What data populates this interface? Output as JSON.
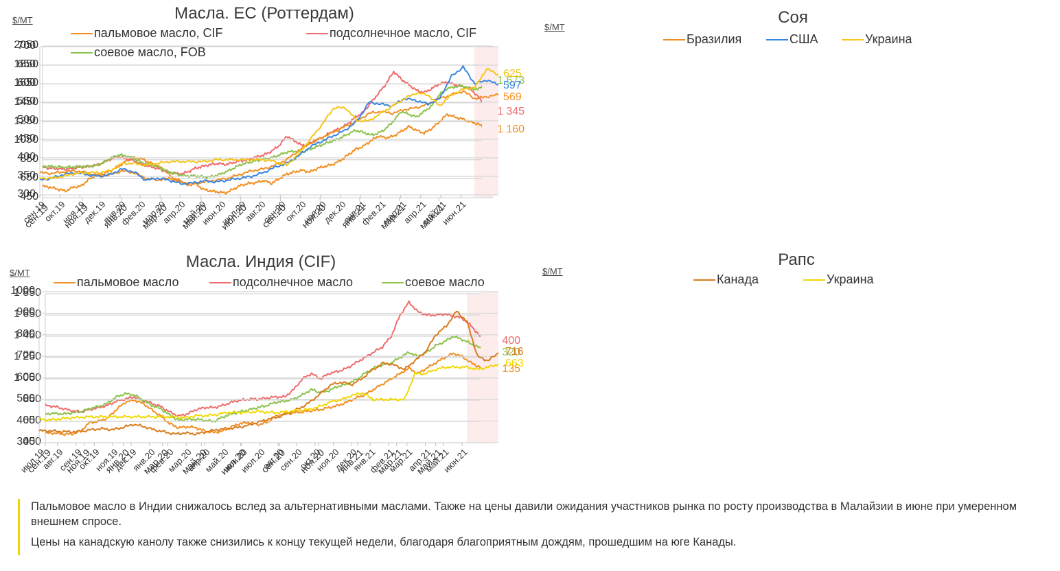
{
  "chart_data": [
    {
      "id": "eu",
      "type": "line",
      "title": "Масла. ЕС (Роттердам)",
      "unit": "$/MT",
      "ylim": [
        450,
        2050
      ],
      "yticks": [
        450,
        650,
        850,
        1050,
        1250,
        1450,
        1650,
        1850,
        2050
      ],
      "ytick_labels": [
        "450",
        "650",
        "850",
        "1050",
        "1250",
        "1450",
        "1650",
        "1850",
        "2050"
      ],
      "x_range": [
        "2019-09",
        "2021-06 (mid)"
      ],
      "xtick_labels": [
        "сен.19",
        "ноя.19",
        "янв.20",
        "мар.20",
        "май.20",
        "июл.20",
        "сен.20",
        "ноя.20",
        "янв.21",
        "мар.21",
        "май.21"
      ],
      "highlight": "last ~3 weeks shaded pink",
      "grid": true,
      "legend": "top",
      "series": [
        {
          "name": "пальмовое масло, CIF",
          "color": "#f28e1f",
          "end_label": "1 160",
          "values": [
            570,
            560,
            540,
            520,
            560,
            570,
            640,
            690,
            700,
            740,
            780,
            840,
            870,
            860,
            820,
            790,
            740,
            660,
            630,
            580,
            600,
            540,
            520,
            510,
            500,
            540,
            580,
            600,
            610,
            630,
            600,
            650,
            700,
            720,
            740,
            720,
            760,
            780,
            800,
            840,
            900,
            960,
            990,
            1050,
            1100,
            1080,
            1100,
            1150,
            1200,
            1160,
            1130,
            1180,
            1250,
            1330,
            1300,
            1280,
            1250,
            1230,
            1180,
            1160
          ]
        },
        {
          "name": "подсолнечное масло, CIF",
          "color": "#ef6b6b",
          "end_label": "1 345",
          "values": [
            770,
            760,
            755,
            750,
            760,
            770,
            780,
            790,
            820,
            860,
            880,
            860,
            840,
            800,
            780,
            760,
            730,
            710,
            700,
            720,
            760,
            780,
            800,
            810,
            800,
            820,
            840,
            850,
            880,
            900,
            940,
            1000,
            1100,
            1050,
            1000,
            1020,
            1060,
            1100,
            1150,
            1180,
            1230,
            1300,
            1350,
            1450,
            1550,
            1650,
            1780,
            1700,
            1640,
            1580,
            1560,
            1600,
            1650,
            1670,
            1640,
            1620,
            1600,
            1520,
            1420,
            1345
          ]
        },
        {
          "name": "соевое масло, FOB",
          "color": "#8bc34a",
          "end_label": "1 673",
          "values": [
            780,
            780,
            775,
            770,
            775,
            780,
            780,
            790,
            820,
            870,
            900,
            890,
            860,
            820,
            800,
            780,
            740,
            710,
            690,
            680,
            680,
            670,
            670,
            690,
            720,
            760,
            800,
            820,
            840,
            860,
            870,
            900,
            930,
            940,
            930,
            960,
            990,
            1020,
            1050,
            1080,
            1120,
            1160,
            1140,
            1110,
            1130,
            1180,
            1260,
            1360,
            1330,
            1300,
            1360,
            1420,
            1540,
            1600,
            1620,
            1630,
            1600,
            1590,
            1660,
            1673
          ]
        }
      ]
    },
    {
      "id": "soy",
      "type": "line",
      "title": "Соя",
      "unit": "$/MT",
      "ylim": [
        300,
        700
      ],
      "yticks": [
        300,
        350,
        400,
        450,
        500,
        550,
        600,
        650,
        700
      ],
      "ytick_labels": [
        "300",
        "350",
        "400",
        "450",
        "500",
        "550",
        "600",
        "650",
        "700"
      ],
      "x_range": [
        "2019-09",
        "2021-06 (mid)"
      ],
      "xtick_labels": [
        "сен.19",
        "окт.19",
        "ноя.19",
        "дек.19",
        "янв.20",
        "фев.20",
        "мар.20",
        "апр.20",
        "май.20",
        "июн.20",
        "июл.20",
        "авг.20",
        "сен.20",
        "окт.20",
        "ноя.20",
        "дек.20",
        "янв.21",
        "фев.21",
        "мар.21",
        "апр.21",
        "май.21",
        "июн.21"
      ],
      "highlight": "last ~3 weeks shaded pink",
      "grid": true,
      "legend": "top",
      "series": [
        {
          "name": "Бразилия",
          "color": "#f28e1f",
          "end_label": "569",
          "values": [
            360,
            358,
            362,
            365,
            360,
            350,
            355,
            365,
            360,
            345,
            340,
            345,
            335,
            330,
            335,
            340,
            345,
            355,
            365,
            370,
            380,
            395,
            420,
            440,
            455,
            470,
            485,
            500,
            520,
            525,
            520,
            530,
            535,
            545,
            560,
            570,
            580,
            560,
            565,
            570
          ]
        },
        {
          "name": "США",
          "color": "#3a86e0",
          "end_label": "597",
          "values": [
            340,
            345,
            355,
            360,
            355,
            350,
            355,
            370,
            362,
            340,
            345,
            340,
            330,
            332,
            338,
            335,
            340,
            345,
            350,
            360,
            375,
            385,
            405,
            430,
            445,
            460,
            475,
            500,
            550,
            545,
            540,
            560,
            555,
            545,
            560,
            620,
            645,
            600,
            610,
            597
          ]
        },
        {
          "name": "Украина",
          "color": "#f5c518",
          "end_label": "625",
          "values": [
            345,
            345,
            350,
            358,
            360,
            360,
            365,
            385,
            385,
            380,
            385,
            390,
            390,
            390,
            390,
            395,
            395,
            395,
            395,
            395,
            390,
            380,
            410,
            450,
            490,
            535,
            535,
            500,
            500,
            520,
            540,
            560,
            575,
            570,
            540,
            570,
            585,
            590,
            640,
            625
          ]
        }
      ]
    },
    {
      "id": "india",
      "type": "line",
      "title": "Масла. Индия (CIF)",
      "unit": "$/MT",
      "ylim": [
        450,
        1850
      ],
      "yticks": [
        450,
        650,
        850,
        1050,
        1250,
        1450,
        1650,
        1850
      ],
      "ytick_labels": [
        "450",
        "650",
        "850",
        "1 050",
        "1 250",
        "1 450",
        "1 650",
        "1 850"
      ],
      "x_range": [
        "2019-09",
        "2021-06 (mid)"
      ],
      "xtick_labels": [
        "сен.19",
        "ноя.19",
        "янв.20",
        "мар.20",
        "май.20",
        "июл.20",
        "сен.20",
        "ноя.20",
        "янв.21",
        "мар.21",
        "май.21"
      ],
      "highlight": "last ~3 weeks shaded pink",
      "grid": true,
      "legend": "top",
      "series": [
        {
          "name": "пальмовое масло",
          "color": "#f28e1f",
          "end_label": "1 135",
          "values": [
            540,
            540,
            530,
            530,
            560,
            640,
            650,
            680,
            760,
            830,
            850,
            820,
            760,
            700,
            630,
            590,
            600,
            590,
            560,
            545,
            560,
            600,
            630,
            640,
            620,
            640,
            700,
            720,
            730,
            740,
            750,
            760,
            780,
            800,
            830,
            870,
            900,
            950,
            1000,
            1050,
            1100,
            1150,
            1100,
            1150,
            1200,
            1250,
            1290,
            1260,
            1200,
            1160,
            1135
          ]
        },
        {
          "name": "подсолнечное масло",
          "color": "#ef6b6b",
          "end_label": "1 400",
          "values": [
            800,
            790,
            770,
            750,
            740,
            760,
            780,
            800,
            840,
            860,
            880,
            850,
            820,
            790,
            740,
            700,
            720,
            760,
            780,
            780,
            800,
            830,
            850,
            860,
            860,
            870,
            880,
            880,
            950,
            1050,
            1100,
            1050,
            1100,
            1120,
            1150,
            1200,
            1250,
            1300,
            1350,
            1450,
            1650,
            1770,
            1680,
            1650,
            1650,
            1660,
            1640,
            1620,
            1550,
            1450,
            1400
          ]
        },
        {
          "name": "соевое масло",
          "color": "#8bc34a",
          "end_label": "1 320",
          "values": [
            720,
            725,
            720,
            730,
            740,
            770,
            790,
            820,
            880,
            910,
            900,
            850,
            800,
            770,
            710,
            660,
            670,
            670,
            660,
            650,
            690,
            720,
            740,
            760,
            780,
            800,
            830,
            840,
            860,
            900,
            950,
            920,
            940,
            980,
            1000,
            1040,
            1100,
            1150,
            1180,
            1200,
            1250,
            1300,
            1260,
            1300,
            1360,
            1400,
            1450,
            1420,
            1380,
            1340,
            1320
          ]
        }
      ]
    },
    {
      "id": "rapeseed",
      "type": "line",
      "title": "Рапс",
      "unit": "$/MT",
      "ylim": [
        300,
        1000
      ],
      "yticks": [
        300,
        400,
        500,
        600,
        700,
        800,
        900,
        1000
      ],
      "ytick_labels": [
        "300",
        "400",
        "500",
        "600",
        "700",
        "800",
        "900",
        "1000"
      ],
      "x_range": [
        "2019-07",
        "2021-06 (mid)"
      ],
      "xtick_labels": [
        "июл.19",
        "авг.19",
        "сен.19",
        "окт.19",
        "ноя.19",
        "дек.19",
        "янв.20",
        "фев.20",
        "мар.20",
        "апр.20",
        "май.20",
        "июн.20",
        "июл.20",
        "авг.20",
        "сен.20",
        "окт.20",
        "ноя.20",
        "дек.20",
        "янв.21",
        "фев.21",
        "мар.21",
        "апр.21",
        "май.21",
        "июн.21"
      ],
      "highlight": "last ~3 weeks shaded pink",
      "grid": true,
      "legend": "top",
      "series": [
        {
          "name": "Канада",
          "color": "#d97a1a",
          "end_label": "716",
          "values": [
            355,
            355,
            352,
            350,
            352,
            360,
            365,
            360,
            370,
            385,
            375,
            360,
            350,
            340,
            345,
            340,
            350,
            360,
            365,
            370,
            380,
            395,
            410,
            420,
            440,
            460,
            490,
            530,
            570,
            580,
            570,
            600,
            640,
            670,
            660,
            640,
            680,
            720,
            800,
            840,
            910,
            860,
            700,
            680,
            716
          ]
        },
        {
          "name": "Украина",
          "color": "#f0d800",
          "end_label": "663",
          "values": [
            410,
            405,
            410,
            415,
            418,
            420,
            420,
            420,
            420,
            420,
            420,
            420,
            420,
            420,
            415,
            425,
            425,
            430,
            440,
            440,
            440,
            445,
            440,
            440,
            445,
            450,
            455,
            470,
            490,
            500,
            520,
            530,
            500,
            500,
            500,
            500,
            620,
            620,
            640,
            650,
            650,
            650,
            640,
            650,
            663
          ]
        }
      ]
    }
  ],
  "commentary": [
    "Пальмовое масло в Индии снижалось вслед за альтернативными маслами. Также на цены давили ожидания участников рынка по росту производства в Малайзии в июне при умеренном внешнем спросе.",
    "Цены на канадскую канолу также снизились к концу  текущей недели, благодаря благоприятным дождям, прошедшим на юге Канады."
  ]
}
